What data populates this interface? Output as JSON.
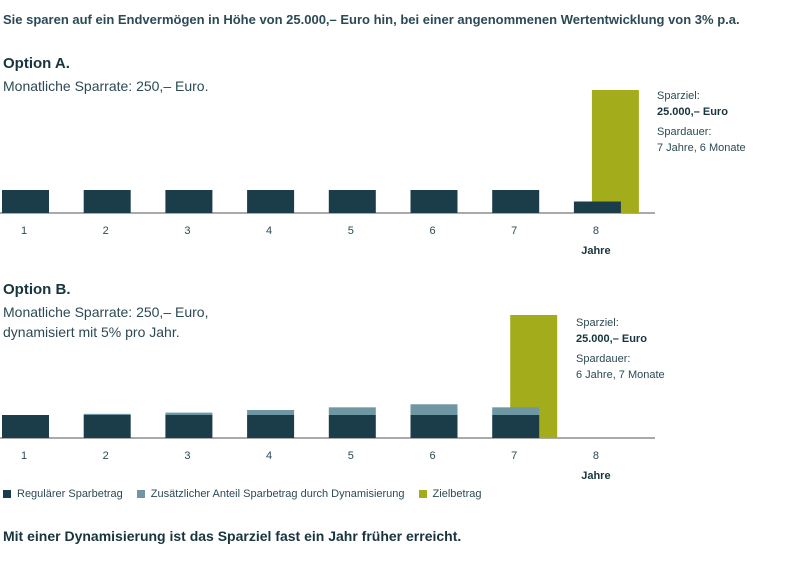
{
  "headline": "Sie sparen auf ein Endvermögen in Höhe von 25.000,– Euro hin, bei einer angenommenen Wertentwicklung von 3% p.a.",
  "colors": {
    "regular": "#1b3d4a",
    "additional": "#6e97a3",
    "goal": "#a3ad1c",
    "axis": "#555555"
  },
  "option_a": {
    "title": "Option A.",
    "subtitle": [
      "Monatliche Sparrate: 250,– Euro."
    ],
    "goal_label": "Sparziel:",
    "goal_value": "25.000,– Euro",
    "duration_label": "Spardauer:",
    "duration_value": "7 Jahre, 6 Monate"
  },
  "option_b": {
    "title": "Option B.",
    "subtitle": [
      "Monatliche Sparrate: 250,– Euro,",
      "dynamisiert mit 5% pro Jahr."
    ],
    "goal_label": "Sparziel:",
    "goal_value": "25.000,– Euro",
    "duration_label": "Spardauer:",
    "duration_value": "6 Jahre, 7 Monate"
  },
  "legend": [
    {
      "label": "Regulärer Sparbetrag",
      "color": "#1b3d4a"
    },
    {
      "label": "Zusätzlicher Anteil Sparbetrag durch Dynamisierung",
      "color": "#6e97a3"
    },
    {
      "label": "Zielbetrag",
      "color": "#a3ad1c"
    }
  ],
  "conclusion": "Mit einer Dynamisierung ist das Sparziel fast ein Jahr früher erreicht.",
  "chart_data": [
    {
      "type": "bar",
      "stacked": true,
      "categories": [
        "1",
        "2",
        "3",
        "4",
        "5",
        "6",
        "7",
        "8"
      ],
      "xlabel": "Jahre",
      "series": [
        {
          "name": "Regulärer Sparbetrag",
          "values": [
            3000,
            3000,
            3000,
            3000,
            3000,
            3000,
            3000,
            1500
          ]
        },
        {
          "name": "Zielbetrag",
          "values": [
            0,
            0,
            0,
            0,
            0,
            0,
            0,
            25000
          ]
        }
      ]
    },
    {
      "type": "bar",
      "stacked": true,
      "categories": [
        "1",
        "2",
        "3",
        "4",
        "5",
        "6",
        "7",
        "8"
      ],
      "xlabel": "Jahre",
      "series": [
        {
          "name": "Regulärer Sparbetrag",
          "values": [
            3000,
            3000,
            3000,
            3000,
            3000,
            3000,
            3000,
            0
          ]
        },
        {
          "name": "Zusätzlicher Anteil Sparbetrag durch Dynamisierung",
          "values": [
            0,
            150,
            310,
            650,
            1000,
            1400,
            1000,
            0
          ]
        },
        {
          "name": "Zielbetrag",
          "values": [
            0,
            0,
            0,
            0,
            0,
            0,
            25000,
            0
          ]
        }
      ]
    }
  ]
}
